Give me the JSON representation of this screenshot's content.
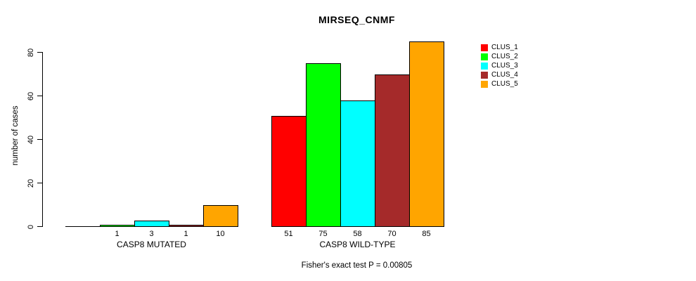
{
  "chart_data": {
    "type": "bar",
    "title": "MIRSEQ_CNMF",
    "xlabel": "",
    "ylabel": "number of cases",
    "ylim": [
      0,
      85
    ],
    "yticks": [
      0,
      20,
      40,
      60,
      80
    ],
    "grid": false,
    "legend_position": "right-outside",
    "annotation": "Fisher's exact test P = 0.00805",
    "categories": [
      "CASP8 MUTATED",
      "CASP8 WILD-TYPE"
    ],
    "series": [
      {
        "name": "CLUS_1",
        "color": "#FF0000",
        "values": [
          0,
          51
        ]
      },
      {
        "name": "CLUS_2",
        "color": "#00FF00",
        "values": [
          1,
          75
        ]
      },
      {
        "name": "CLUS_3",
        "color": "#00FFFF",
        "values": [
          3,
          58
        ]
      },
      {
        "name": "CLUS_4",
        "color": "#A52A2A",
        "values": [
          1,
          70
        ]
      },
      {
        "name": "CLUS_5",
        "color": "#FFA500",
        "values": [
          10,
          85
        ]
      }
    ],
    "bar_value_labels": {
      "shown": true,
      "hide_zero": true
    }
  }
}
